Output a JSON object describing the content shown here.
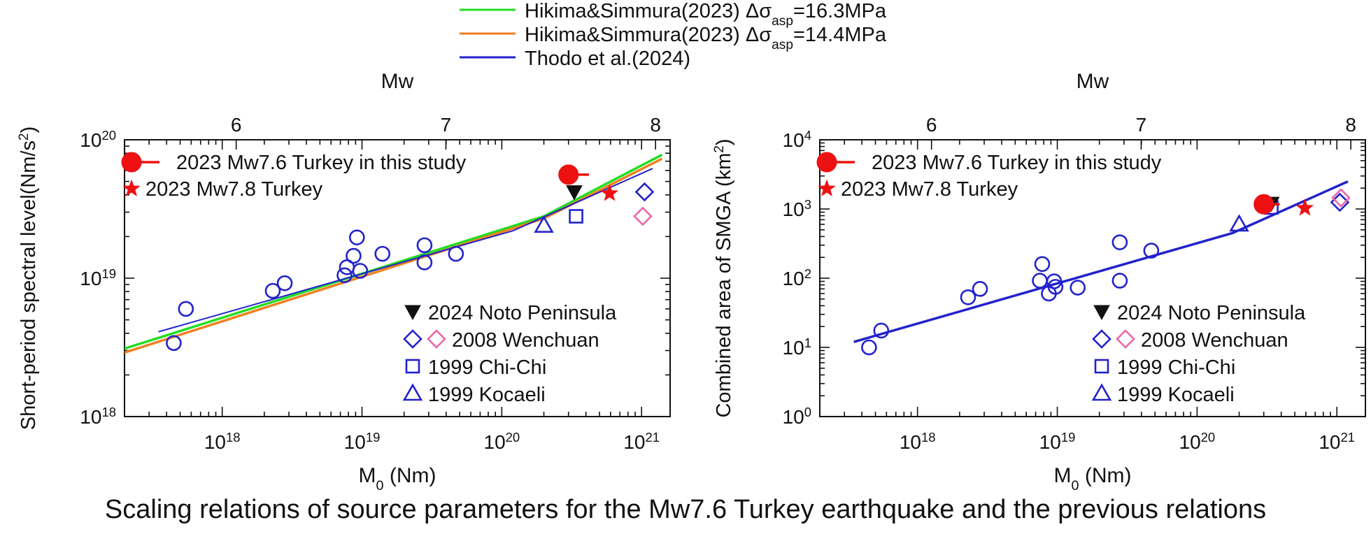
{
  "caption": "Scaling relations of source parameters for the Mw7.6 Turkey earthquake and the previous relations",
  "legend_top": [
    {
      "label": "Hikima&Simmura(2023) Δσ",
      "sub": "asp",
      "suffix": "=16.3MPa",
      "color": "#22dd22"
    },
    {
      "label": "Hikima&Simmura(2023) Δσ",
      "sub": "asp",
      "suffix": "=14.4MPa",
      "color": "#f08020"
    },
    {
      "label": "Thodo et al.(2024)",
      "sub": "",
      "suffix": "",
      "color": "#2222cc"
    }
  ],
  "chart_data": [
    {
      "type": "scatter",
      "panel": "left",
      "top_axis_label": "Mw",
      "top_ticks": [
        6,
        7,
        8
      ],
      "xlabel": "M",
      "xlabel_sub": "0",
      "xlabel_unit": " (Nm)",
      "ylabel": "Short-period spectral level(Nm/s",
      "ylabel_sup": "2",
      "ylabel_end": ")",
      "x_scale": "log",
      "y_scale": "log",
      "xlim": [
        2e+17,
        1.6e+21
      ],
      "ylim": [
        1e+18,
        1e+20
      ],
      "x_ticks": [
        {
          "base": "10",
          "exp": "18",
          "value": 1e+18
        },
        {
          "base": "10",
          "exp": "19",
          "value": 1e+19
        },
        {
          "base": "10",
          "exp": "20",
          "value": 1e+20
        },
        {
          "base": "10",
          "exp": "21",
          "value": 1e+21
        }
      ],
      "y_ticks": [
        {
          "base": "10",
          "exp": "18",
          "value": 1e+18
        },
        {
          "base": "10",
          "exp": "19",
          "value": 1e+19
        },
        {
          "base": "10",
          "exp": "20",
          "value": 1e+20
        }
      ],
      "legend_upper": [
        {
          "marker": "turkey-circle",
          "label": "2023 Mw7.6 Turkey in this study"
        },
        {
          "marker": "star",
          "label": "2023 Mw7.8 Turkey"
        }
      ],
      "legend_lower": [
        {
          "marker": "triangle-down",
          "label": "2024 Noto Peninsula"
        },
        {
          "marker": "diamond-pair",
          "label": "2008 Wenchuan"
        },
        {
          "marker": "square",
          "label": "1999 Chi-Chi"
        },
        {
          "marker": "triangle",
          "label": "1999 Kocaeli"
        }
      ],
      "lines": [
        {
          "name": "Hikima&Simmura(2023) Δσasp=16.3MPa",
          "color": "#22dd22",
          "width": 3.5,
          "points": [
            [
              2e+17,
              3.1e+18
            ],
            [
              2e+20,
              2.8e+19
            ],
            [
              1.4e+21,
              7.8e+19
            ]
          ]
        },
        {
          "name": "Hikima&Simmura(2023) Δσasp=14.4MPa",
          "color": "#f08020",
          "width": 3.5,
          "points": [
            [
              2e+17,
              2.9e+18
            ],
            [
              2e+20,
              2.7e+19
            ],
            [
              1.4e+21,
              7.3e+19
            ]
          ]
        },
        {
          "name": "Thodo et al.(2024)",
          "color": "#2222cc",
          "width": 2,
          "points": [
            [
              3.5e+17,
              4.1e+18
            ],
            [
              1.2e+20,
              2.2e+19
            ],
            [
              1.2e+21,
              6.2e+19
            ]
          ]
        }
      ],
      "points": [
        {
          "marker": "circle",
          "x": 4.5e+17,
          "y": 3.4e+18
        },
        {
          "marker": "circle",
          "x": 5.5e+17,
          "y": 6e+18
        },
        {
          "marker": "circle",
          "x": 2.3e+18,
          "y": 8.1e+18
        },
        {
          "marker": "circle",
          "x": 2.8e+18,
          "y": 9.2e+18
        },
        {
          "marker": "circle",
          "x": 7.5e+18,
          "y": 1.05e+19
        },
        {
          "marker": "circle",
          "x": 7.8e+18,
          "y": 1.2e+19
        },
        {
          "marker": "circle",
          "x": 8.7e+18,
          "y": 1.45e+19
        },
        {
          "marker": "circle",
          "x": 9.2e+18,
          "y": 1.97e+19
        },
        {
          "marker": "circle",
          "x": 9.7e+18,
          "y": 1.13e+19
        },
        {
          "marker": "circle",
          "x": 1.4e+19,
          "y": 1.5e+19
        },
        {
          "marker": "circle",
          "x": 2.8e+19,
          "y": 1.73e+19
        },
        {
          "marker": "circle",
          "x": 2.8e+19,
          "y": 1.3e+19
        },
        {
          "marker": "circle",
          "x": 4.7e+19,
          "y": 1.5e+19
        },
        {
          "marker": "triangle",
          "x": 2e+20,
          "y": 2.4e+19
        },
        {
          "marker": "square",
          "x": 3.4e+20,
          "y": 2.8e+19
        },
        {
          "marker": "triangle-down",
          "x": 3.3e+20,
          "y": 4.2e+19
        },
        {
          "marker": "turkey-circle",
          "x": 3e+20,
          "y": 5.6e+19,
          "x_end": 4.2e+20
        },
        {
          "marker": "star",
          "x": 5.9e+20,
          "y": 4.1e+19
        },
        {
          "marker": "diamond",
          "x": 1.05e+21,
          "y": 4.2e+19
        },
        {
          "marker": "diamond-pink",
          "x": 1.02e+21,
          "y": 2.8e+19
        }
      ]
    },
    {
      "type": "scatter",
      "panel": "right",
      "top_axis_label": "Mw",
      "top_ticks": [
        6,
        7,
        8
      ],
      "xlabel": "M",
      "xlabel_sub": "0",
      "xlabel_unit": " (Nm)",
      "ylabel": "Combined area of SMGA (km",
      "ylabel_sup": "2",
      "ylabel_end": ")",
      "x_scale": "log",
      "y_scale": "log",
      "xlim": [
        2e+17,
        1.6e+21
      ],
      "ylim": [
        1,
        10000
      ],
      "x_ticks": [
        {
          "base": "10",
          "exp": "18",
          "value": 1e+18
        },
        {
          "base": "10",
          "exp": "19",
          "value": 1e+19
        },
        {
          "base": "10",
          "exp": "20",
          "value": 1e+20
        },
        {
          "base": "10",
          "exp": "21",
          "value": 1e+21
        }
      ],
      "y_ticks": [
        {
          "base": "10",
          "exp": "0",
          "value": 1
        },
        {
          "base": "10",
          "exp": "1",
          "value": 10
        },
        {
          "base": "10",
          "exp": "2",
          "value": 100
        },
        {
          "base": "10",
          "exp": "3",
          "value": 1000
        },
        {
          "base": "10",
          "exp": "4",
          "value": 10000
        }
      ],
      "legend_upper": [
        {
          "marker": "turkey-circle",
          "label": "2023 Mw7.6 Turkey in this study"
        },
        {
          "marker": "star",
          "label": "2023 Mw7.8 Turkey"
        }
      ],
      "legend_lower": [
        {
          "marker": "triangle-down",
          "label": "2024 Noto Peninsula"
        },
        {
          "marker": "diamond-pair",
          "label": "2008 Wenchuan"
        },
        {
          "marker": "square",
          "label": "1999 Chi-Chi"
        },
        {
          "marker": "triangle",
          "label": "1999 Kocaeli"
        }
      ],
      "lines": [
        {
          "name": "Thodo et al.(2024)",
          "color": "#2222cc",
          "width": 3.5,
          "points": [
            [
              3.5e+17,
              12
            ],
            [
              1.8e+20,
              450
            ],
            [
              1.2e+21,
              2500
            ]
          ]
        }
      ],
      "points": [
        {
          "marker": "circle",
          "x": 4.5e+17,
          "y": 10
        },
        {
          "marker": "circle",
          "x": 5.5e+17,
          "y": 17.5
        },
        {
          "marker": "circle",
          "x": 2.3e+18,
          "y": 53
        },
        {
          "marker": "circle",
          "x": 2.8e+18,
          "y": 70
        },
        {
          "marker": "circle",
          "x": 7.5e+18,
          "y": 92
        },
        {
          "marker": "circle",
          "x": 7.8e+18,
          "y": 160
        },
        {
          "marker": "circle",
          "x": 8.7e+18,
          "y": 60
        },
        {
          "marker": "circle",
          "x": 9.5e+18,
          "y": 90
        },
        {
          "marker": "circle",
          "x": 9.7e+18,
          "y": 75
        },
        {
          "marker": "circle",
          "x": 1.4e+19,
          "y": 73
        },
        {
          "marker": "circle",
          "x": 2.8e+19,
          "y": 330
        },
        {
          "marker": "circle",
          "x": 2.8e+19,
          "y": 92
        },
        {
          "marker": "circle",
          "x": 4.7e+19,
          "y": 250
        },
        {
          "marker": "triangle",
          "x": 2e+20,
          "y": 600
        },
        {
          "marker": "square",
          "x": 3.4e+20,
          "y": 1050
        },
        {
          "marker": "triangle-down",
          "x": 3.4e+20,
          "y": 1200
        },
        {
          "marker": "turkey-circle",
          "x": 3e+20,
          "y": 1170,
          "x_end": 3.9e+20
        },
        {
          "marker": "star",
          "x": 5.9e+20,
          "y": 1030
        },
        {
          "marker": "diamond",
          "x": 1.05e+21,
          "y": 1250
        },
        {
          "marker": "diamond-pink",
          "x": 1.07e+21,
          "y": 1450
        }
      ]
    }
  ]
}
